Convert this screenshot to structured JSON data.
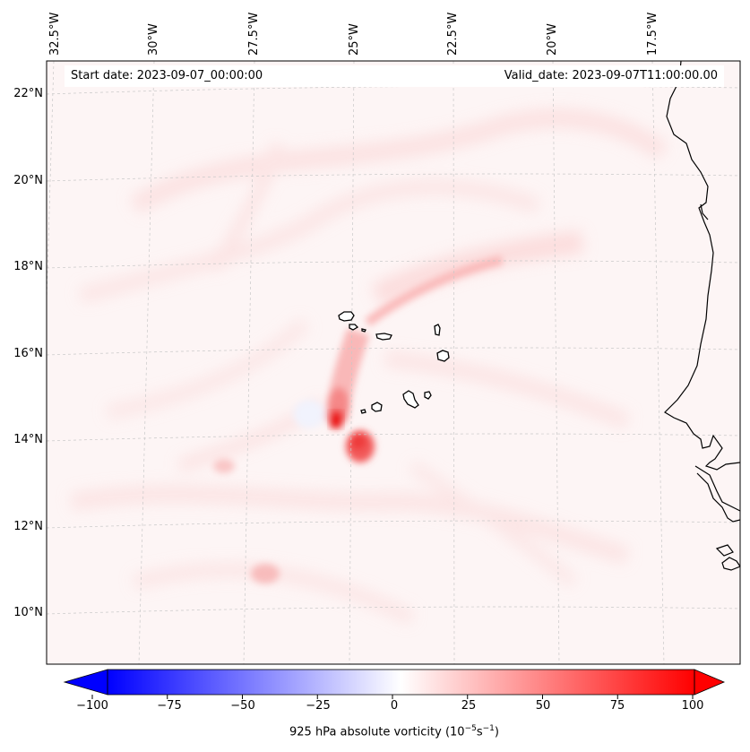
{
  "map": {
    "start_label": "Start date: 2023-09-07_00:00:00",
    "valid_label": "Valid_date: 2023-09-07T11:00:00.00",
    "lon_labels": [
      "32.5°W",
      "30°W",
      "27.5°W",
      "25°W",
      "22.5°W",
      "20°W",
      "17.5°W"
    ],
    "lat_labels": [
      "22°N",
      "20°N",
      "18°N",
      "16°N",
      "14°N",
      "12°N",
      "10°N"
    ],
    "field": "925 hPa absolute vorticity",
    "colormap": "bwr",
    "vorticity_max_location": "approx. 14.5°N, 25.3°W"
  },
  "colorbar": {
    "ticks": [
      "−100",
      "−75",
      "−50",
      "−25",
      "0",
      "25",
      "50",
      "75",
      "100"
    ],
    "label": "925 hPa absolute vorticity (10",
    "label_exp1": "−5",
    "label_mid": "s",
    "label_exp2": "−1",
    "label_end": ")",
    "min": -100,
    "max": 100,
    "negative_color": "#0000ff",
    "zero_color": "#ffffff",
    "positive_color": "#ff0000"
  }
}
